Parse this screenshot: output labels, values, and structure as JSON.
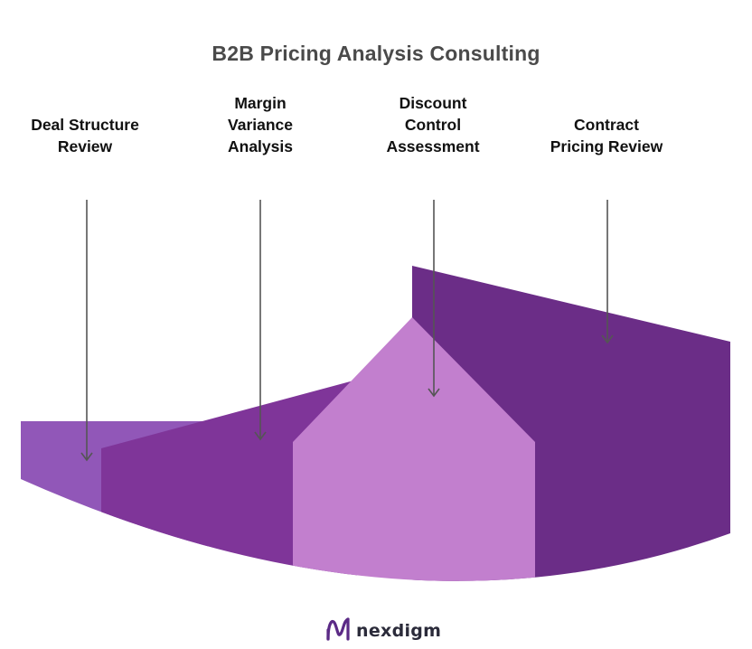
{
  "title": "B2B Pricing Analysis Consulting",
  "segments": [
    {
      "label": "Deal Structure\nReview",
      "color": "#9157b8"
    },
    {
      "label": "Margin\nVariance\nAnalysis",
      "color": "#7f3599"
    },
    {
      "label": "Discount\nControl\nAssessment",
      "color": "#c27fce"
    },
    {
      "label": "Contract\nPricing Review",
      "color": "#6b2d87"
    }
  ],
  "arrow_color": "#555555",
  "brand": {
    "name": "nexdigm",
    "icon": "nexdigm-logo-icon",
    "color": "#5b2a86"
  }
}
